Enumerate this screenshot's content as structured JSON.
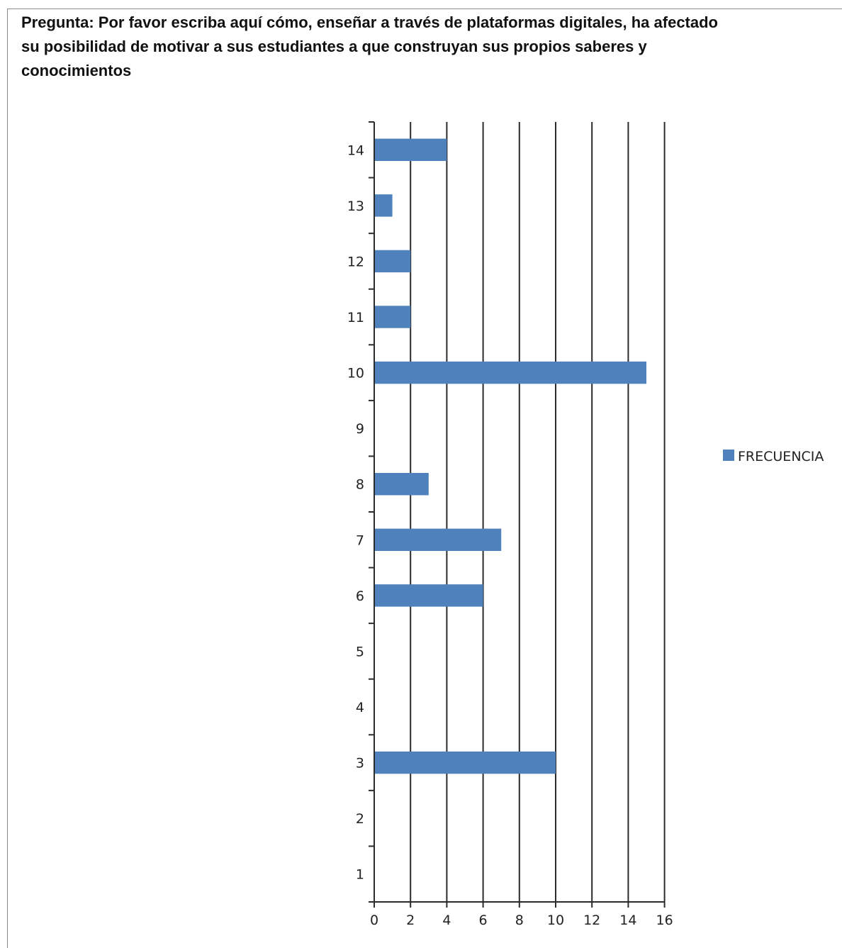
{
  "title": "Pregunta: Por favor escriba aquí cómo, enseñar a través de plataformas digitales, ha afectado su posibilidad de motivar a sus estudiantes a que construyan sus propios saberes y conocimientos",
  "chart_data": {
    "type": "bar",
    "orientation": "horizontal",
    "categories": [
      "1",
      "2",
      "3",
      "4",
      "5",
      "6",
      "7",
      "8",
      "9",
      "10",
      "11",
      "12",
      "13",
      "14"
    ],
    "series": [
      {
        "name": "FRECUENCIA",
        "values": [
          0,
          0,
          10,
          0,
          0,
          6,
          7,
          3,
          0,
          15,
          2,
          2,
          1,
          4
        ],
        "color": "#4f81bd"
      }
    ],
    "xlim": [
      0,
      16
    ],
    "x_ticks": [
      0,
      2,
      4,
      6,
      8,
      10,
      12,
      14,
      16
    ],
    "grid": "vertical",
    "legend": "right"
  }
}
